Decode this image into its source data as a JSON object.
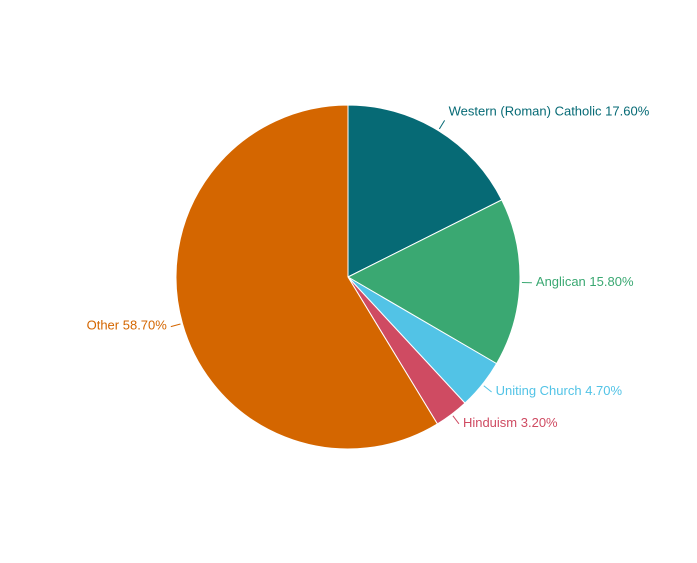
{
  "chart_data": {
    "type": "pie",
    "categories": [
      "Western (Roman) Catholic",
      "Anglican",
      "Uniting Church",
      "Hinduism",
      "Other"
    ],
    "values": [
      17.6,
      15.8,
      4.7,
      3.2,
      58.7
    ],
    "value_labels": [
      "17.60%",
      "15.80%",
      "4.70%",
      "3.20%",
      "58.70%"
    ],
    "colors": [
      "#066a75",
      "#3aa872",
      "#52c3e6",
      "#cf4b62",
      "#d46600"
    ]
  }
}
